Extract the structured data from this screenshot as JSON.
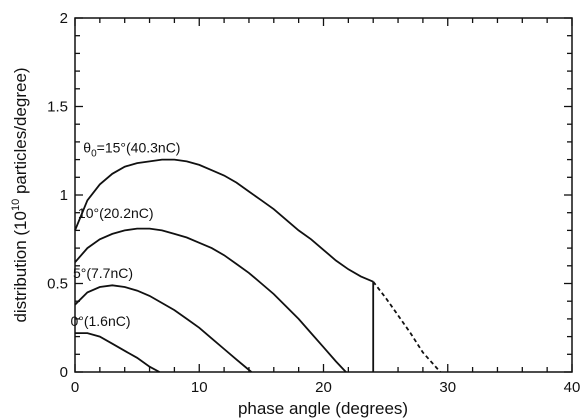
{
  "chart_data": {
    "type": "line",
    "xlabel": "phase angle  (degrees)",
    "ylabel": "distribution  (10",
    "ylabel_sup": "10",
    "ylabel_tail": "  particles/degree)",
    "xlim": [
      0,
      40
    ],
    "ylim": [
      0,
      2
    ],
    "xticks": [
      0,
      10,
      20,
      30,
      40
    ],
    "xtick_labels": [
      "0",
      "10",
      "20",
      "30",
      "40"
    ],
    "yticks": [
      0,
      0.5,
      1,
      1.5,
      2
    ],
    "ytick_labels": [
      "0",
      "0.5",
      "1",
      "1.5",
      "2"
    ],
    "grid": false,
    "series": [
      {
        "label": "θ",
        "label_sub": "0",
        "label_tail": "=15°(40.3nC)",
        "x": [
          0,
          1,
          2,
          3,
          4,
          5,
          6,
          7,
          8,
          9,
          10,
          11,
          12,
          13,
          14,
          15,
          16,
          17,
          18,
          19,
          20,
          21,
          22,
          23,
          24
        ],
        "y": [
          0.8,
          0.97,
          1.06,
          1.12,
          1.16,
          1.18,
          1.19,
          1.2,
          1.2,
          1.19,
          1.17,
          1.14,
          1.11,
          1.07,
          1.02,
          0.97,
          0.92,
          0.86,
          0.8,
          0.75,
          0.69,
          0.63,
          0.58,
          0.54,
          0.51
        ],
        "drop_to_zero_at": 24,
        "dashed_x": [
          24,
          25,
          26,
          27,
          28,
          29.4
        ],
        "dashed_y": [
          0.51,
          0.42,
          0.32,
          0.22,
          0.11,
          0.0
        ]
      },
      {
        "label": "10°(20.2nC)",
        "x": [
          0,
          1,
          2,
          3,
          4,
          5,
          6,
          7,
          8,
          9,
          10,
          11,
          12,
          13,
          14,
          15,
          16,
          17,
          18,
          19,
          20,
          21,
          21.8
        ],
        "y": [
          0.62,
          0.7,
          0.75,
          0.78,
          0.8,
          0.81,
          0.81,
          0.8,
          0.78,
          0.76,
          0.73,
          0.7,
          0.66,
          0.61,
          0.56,
          0.5,
          0.44,
          0.37,
          0.3,
          0.22,
          0.14,
          0.06,
          0.0
        ]
      },
      {
        "label": "5°(7.7nC)",
        "x": [
          0,
          1,
          2,
          3,
          4,
          5,
          6,
          7,
          8,
          9,
          10,
          11,
          12,
          13,
          14.2
        ],
        "y": [
          0.38,
          0.45,
          0.48,
          0.49,
          0.48,
          0.46,
          0.43,
          0.39,
          0.35,
          0.3,
          0.25,
          0.19,
          0.13,
          0.07,
          0.0
        ]
      },
      {
        "label": "0°(1.6nC)",
        "x": [
          0,
          1,
          2,
          3,
          4,
          5,
          6,
          6.8
        ],
        "y": [
          0.22,
          0.22,
          0.2,
          0.16,
          0.12,
          0.08,
          0.03,
          0.0
        ]
      }
    ]
  }
}
